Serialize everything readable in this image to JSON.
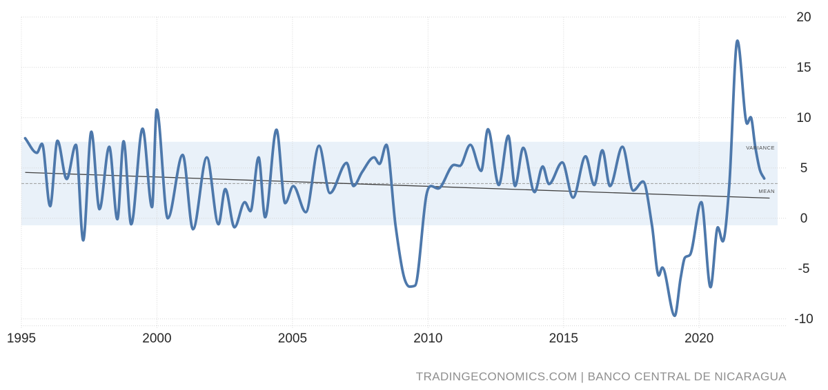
{
  "attribution": {
    "text": "TRADINGECONOMICS.COM | BANCO CENTRAL DE NICARAGUA"
  },
  "colors": {
    "line": "#4d78ab",
    "variance_band": "#e9f1f9",
    "grid": "#d6d6d6",
    "tick_label": "#262626",
    "trend_line": "#404040",
    "mean_line": "#9b9b9b",
    "small_label": "#4a4a4a",
    "attribution": "#8f8f8f",
    "background": "#ffffff"
  },
  "chart_data": {
    "type": "line",
    "grid": "dotted",
    "legend_position": "none",
    "xlim": [
      1995,
      2023.25
    ],
    "ylim": [
      -10,
      20
    ],
    "x_ticks": [
      1995,
      2000,
      2005,
      2010,
      2015,
      2020
    ],
    "y_ticks": [
      20,
      15,
      10,
      5,
      0,
      -5,
      -10
    ],
    "mean": {
      "label": "MEAN",
      "value": 3.45
    },
    "variance_band": {
      "label": "VARIANCE",
      "from": -0.7,
      "to": 7.6
    },
    "trendline": {
      "start": [
        1995.14,
        4.55
      ],
      "end": [
        2022.6,
        2.0
      ]
    },
    "series": [
      {
        "name": "gdp-annual-growth-rate",
        "points": [
          [
            1995.14,
            7.95
          ],
          [
            1995.57,
            6.5
          ],
          [
            1995.76,
            7.4
          ],
          [
            1996.06,
            1.2
          ],
          [
            1996.33,
            7.7
          ],
          [
            1996.67,
            3.9
          ],
          [
            1997.01,
            7.3
          ],
          [
            1997.28,
            -2.2
          ],
          [
            1997.58,
            8.6
          ],
          [
            1997.88,
            0.9
          ],
          [
            1998.24,
            7.1
          ],
          [
            1998.54,
            -0.1
          ],
          [
            1998.77,
            7.65
          ],
          [
            1999.05,
            -0.6
          ],
          [
            1999.47,
            8.9
          ],
          [
            1999.82,
            1.1
          ],
          [
            1999.99,
            10.8
          ],
          [
            2000.4,
            0.0
          ],
          [
            2000.95,
            6.3
          ],
          [
            2001.33,
            -1.1
          ],
          [
            2001.84,
            6.05
          ],
          [
            2002.27,
            -0.6
          ],
          [
            2002.52,
            2.9
          ],
          [
            2002.86,
            -0.9
          ],
          [
            2003.24,
            1.6
          ],
          [
            2003.45,
            0.7
          ],
          [
            2003.75,
            6.05
          ],
          [
            2003.99,
            0.1
          ],
          [
            2004.41,
            8.8
          ],
          [
            2004.73,
            1.5
          ],
          [
            2005.03,
            3.2
          ],
          [
            2005.49,
            0.6
          ],
          [
            2005.98,
            7.2
          ],
          [
            2006.38,
            2.5
          ],
          [
            2007.0,
            5.5
          ],
          [
            2007.25,
            3.2
          ],
          [
            2007.57,
            4.6
          ],
          [
            2008.01,
            6.05
          ],
          [
            2008.21,
            5.4
          ],
          [
            2008.46,
            7.3
          ],
          [
            2008.8,
            -0.7
          ],
          [
            2009.1,
            -5.7
          ],
          [
            2009.32,
            -6.8
          ],
          [
            2009.52,
            -6.7
          ],
          [
            2009.94,
            2.3
          ],
          [
            2010.11,
            3.2
          ],
          [
            2010.37,
            2.95
          ],
          [
            2010.96,
            5.3
          ],
          [
            2011.17,
            5.2
          ],
          [
            2011.56,
            7.3
          ],
          [
            2011.96,
            4.7
          ],
          [
            2012.21,
            8.85
          ],
          [
            2012.61,
            3.3
          ],
          [
            2012.96,
            8.2
          ],
          [
            2013.21,
            3.2
          ],
          [
            2013.51,
            7.0
          ],
          [
            2013.93,
            2.6
          ],
          [
            2014.23,
            5.15
          ],
          [
            2014.46,
            3.4
          ],
          [
            2014.95,
            5.55
          ],
          [
            2015.35,
            2.05
          ],
          [
            2015.81,
            6.15
          ],
          [
            2016.13,
            3.3
          ],
          [
            2016.43,
            6.75
          ],
          [
            2016.71,
            3.2
          ],
          [
            2017.17,
            7.1
          ],
          [
            2017.57,
            2.75
          ],
          [
            2017.93,
            3.65
          ],
          [
            2018.26,
            -0.7
          ],
          [
            2018.51,
            -5.7
          ],
          [
            2018.64,
            -4.9
          ],
          [
            2019.1,
            -9.7
          ],
          [
            2019.32,
            -5.9
          ],
          [
            2019.48,
            -3.9
          ],
          [
            2019.66,
            -3.65
          ],
          [
            2020.08,
            1.6
          ],
          [
            2020.42,
            -6.85
          ],
          [
            2020.69,
            -0.9
          ],
          [
            2020.87,
            -2.3
          ],
          [
            2021.11,
            3.2
          ],
          [
            2021.41,
            17.65
          ],
          [
            2021.77,
            9.4
          ],
          [
            2021.9,
            10.05
          ],
          [
            2022.07,
            7.1
          ],
          [
            2022.24,
            4.8
          ],
          [
            2022.4,
            3.95
          ]
        ]
      }
    ]
  }
}
